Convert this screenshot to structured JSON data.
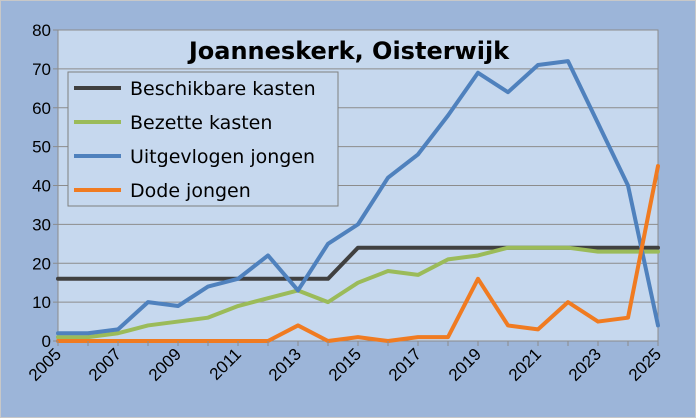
{
  "chart_data": {
    "type": "line",
    "title": "Joanneskerk, Oisterwijk",
    "x": [
      2005,
      2006,
      2007,
      2008,
      2009,
      2010,
      2011,
      2012,
      2013,
      2014,
      2015,
      2016,
      2017,
      2018,
      2019,
      2020,
      2021,
      2022,
      2023,
      2024,
      2025
    ],
    "x_tick_labels": [
      "2005",
      "2007",
      "2009",
      "2011",
      "2013",
      "2015",
      "2017",
      "2019",
      "2021",
      "2023",
      "2025"
    ],
    "y_tick_labels": [
      "0",
      "10",
      "20",
      "30",
      "40",
      "50",
      "60",
      "70",
      "80"
    ],
    "xlim": [
      2005,
      2025
    ],
    "ylim": [
      0,
      80
    ],
    "grid": true,
    "legend_position": "top-left",
    "series": [
      {
        "name": "Beschikbare kasten",
        "color": "#404040",
        "values": [
          16,
          16,
          16,
          16,
          16,
          16,
          16,
          16,
          16,
          16,
          24,
          24,
          24,
          24,
          24,
          24,
          24,
          24,
          24,
          24,
          24
        ]
      },
      {
        "name": "Bezette kasten",
        "color": "#9bbb59",
        "values": [
          1,
          1,
          2,
          4,
          5,
          6,
          9,
          11,
          13,
          10,
          15,
          18,
          17,
          21,
          22,
          24,
          24,
          24,
          23,
          23,
          23
        ]
      },
      {
        "name": "Uitgevlogen jongen",
        "color": "#4f81bd",
        "values": [
          2,
          2,
          3,
          10,
          9,
          14,
          16,
          22,
          13,
          25,
          30,
          42,
          48,
          58,
          69,
          64,
          71,
          72,
          56,
          40,
          4
        ]
      },
      {
        "name": "Dode jongen",
        "color": "#f07b21",
        "values": [
          0,
          0,
          0,
          0,
          0,
          0,
          0,
          0,
          4,
          0,
          1,
          0,
          1,
          1,
          16,
          4,
          3,
          10,
          5,
          6,
          45
        ]
      }
    ]
  }
}
